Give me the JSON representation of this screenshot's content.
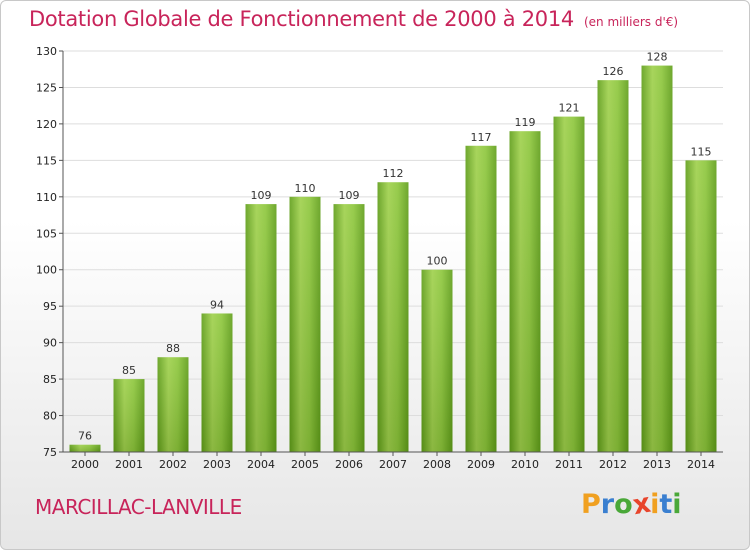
{
  "chart_data": {
    "type": "bar",
    "title": "Dotation Globale de Fonctionnement de 2000 à 2014",
    "subtitle": "(en milliers d'€)",
    "categories": [
      "2000",
      "2001",
      "2002",
      "2003",
      "2004",
      "2005",
      "2006",
      "2007",
      "2008",
      "2009",
      "2010",
      "2011",
      "2012",
      "2013",
      "2014"
    ],
    "values": [
      76,
      85,
      88,
      94,
      109,
      110,
      109,
      112,
      100,
      117,
      119,
      121,
      126,
      128,
      115
    ],
    "ylim": [
      75,
      130
    ],
    "yticks": [
      "75",
      "80",
      "85",
      "90",
      "95",
      "100",
      "105",
      "110",
      "115",
      "120",
      "125",
      "130"
    ],
    "grid": true,
    "bar_color": "#7cbf2e",
    "bar_color_light": "#9ed04a",
    "bar_color_dark": "#5f9e18"
  },
  "footer": {
    "commune": "MARCILLAC-LANVILLE",
    "logo": {
      "letters": [
        "P",
        "r",
        "o",
        "x",
        "i",
        "t",
        "i"
      ],
      "colors": [
        "#f0a020",
        "#3a7fd0",
        "#49a838",
        "#e8452c",
        "#f0a020",
        "#3a7fd0",
        "#49a838"
      ]
    }
  },
  "colors": {
    "title": "#c8245a",
    "grid": "#dddddd",
    "axis": "#555555"
  }
}
